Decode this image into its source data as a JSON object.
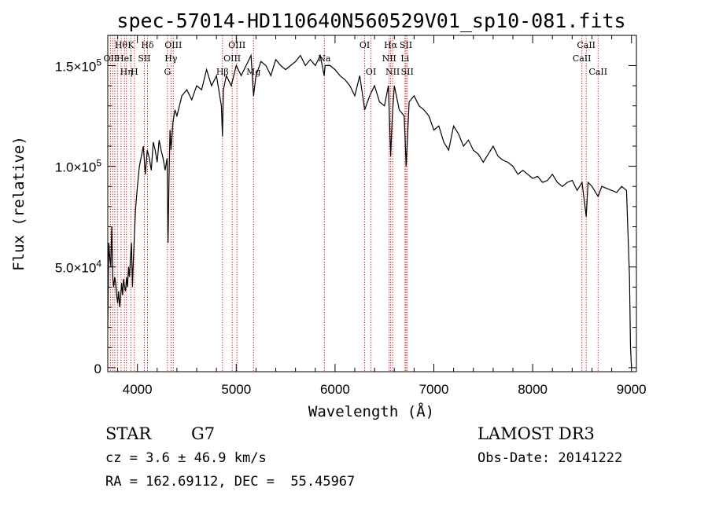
{
  "chart_data": {
    "type": "line",
    "title": "spec-57014-HD110640N560529V01_sp10-081.fits",
    "xlabel": "Wavelength (Å)",
    "ylabel": "Flux (relative)",
    "xlim": [
      3700,
      9050
    ],
    "ylim": [
      -2000,
      165000
    ],
    "xticks": [
      4000,
      5000,
      6000,
      7000,
      8000,
      9000
    ],
    "xtick_labels": [
      "4000",
      "5000",
      "6000",
      "7000",
      "8000",
      "9000"
    ],
    "yticks": [
      0,
      50000,
      100000,
      150000
    ],
    "ytick_labels": [
      {
        "mant": "0",
        "exp": ""
      },
      {
        "mant": "5.0×10",
        "exp": "4"
      },
      {
        "mant": "1.0×10",
        "exp": "5"
      },
      {
        "mant": "1.5×10",
        "exp": "5"
      }
    ],
    "series": [
      {
        "name": "flux",
        "color": "#000000",
        "x": [
          3700,
          3710,
          3720,
          3730,
          3740,
          3750,
          3760,
          3770,
          3780,
          3790,
          3800,
          3810,
          3820,
          3830,
          3840,
          3850,
          3860,
          3870,
          3880,
          3890,
          3900,
          3910,
          3920,
          3930,
          3940,
          3950,
          3960,
          3970,
          3980,
          3990,
          4000,
          4020,
          4040,
          4060,
          4080,
          4100,
          4120,
          4140,
          4160,
          4180,
          4200,
          4220,
          4240,
          4260,
          4280,
          4300,
          4310,
          4320,
          4330,
          4340,
          4360,
          4380,
          4400,
          4450,
          4500,
          4550,
          4600,
          4650,
          4700,
          4750,
          4800,
          4850,
          4861,
          4870,
          4900,
          4950,
          5000,
          5050,
          5100,
          5150,
          5175,
          5200,
          5250,
          5300,
          5350,
          5400,
          5450,
          5500,
          5550,
          5600,
          5650,
          5700,
          5750,
          5800,
          5850,
          5890,
          5900,
          5950,
          6000,
          6050,
          6100,
          6150,
          6200,
          6250,
          6300,
          6350,
          6400,
          6450,
          6500,
          6540,
          6563,
          6580,
          6600,
          6650,
          6700,
          6720,
          6750,
          6800,
          6850,
          6900,
          6950,
          7000,
          7050,
          7100,
          7150,
          7200,
          7250,
          7300,
          7350,
          7400,
          7450,
          7500,
          7550,
          7600,
          7650,
          7700,
          7750,
          7800,
          7850,
          7900,
          7950,
          8000,
          8050,
          8100,
          8150,
          8200,
          8250,
          8300,
          8350,
          8400,
          8450,
          8500,
          8542,
          8560,
          8600,
          8662,
          8700,
          8750,
          8800,
          8850,
          8900,
          8950,
          8980,
          8990,
          9000
        ],
        "y": [
          20000,
          62000,
          55000,
          50000,
          70000,
          45000,
          40000,
          45000,
          42000,
          36000,
          32000,
          38000,
          30000,
          35000,
          42000,
          36000,
          44000,
          40000,
          38000,
          45000,
          40000,
          50000,
          45000,
          55000,
          62000,
          40000,
          55000,
          66000,
          78000,
          84000,
          90000,
          100000,
          105000,
          110000,
          96000,
          108000,
          104000,
          98000,
          112000,
          108000,
          102000,
          113000,
          108000,
          104000,
          98000,
          104000,
          62000,
          95000,
          118000,
          108000,
          122000,
          128000,
          125000,
          135000,
          138000,
          133000,
          140000,
          138000,
          148000,
          140000,
          145000,
          130000,
          115000,
          138000,
          145000,
          140000,
          150000,
          145000,
          150000,
          155000,
          135000,
          145000,
          152000,
          150000,
          145000,
          153000,
          150000,
          148000,
          150000,
          152000,
          155000,
          150000,
          153000,
          150000,
          155000,
          145000,
          150000,
          150000,
          148000,
          145000,
          143000,
          140000,
          135000,
          145000,
          128000,
          135000,
          140000,
          132000,
          130000,
          140000,
          105000,
          125000,
          140000,
          128000,
          125000,
          100000,
          132000,
          135000,
          130000,
          128000,
          125000,
          118000,
          120000,
          112000,
          108000,
          120000,
          116000,
          110000,
          113000,
          108000,
          106000,
          102000,
          106000,
          110000,
          105000,
          103000,
          102000,
          100000,
          96000,
          98000,
          96000,
          94000,
          95000,
          92000,
          93000,
          96000,
          92000,
          90000,
          92000,
          93000,
          88000,
          92000,
          75000,
          92000,
          90000,
          85000,
          90000,
          89000,
          88000,
          87000,
          90000,
          88000,
          45000,
          10000,
          0
        ]
      }
    ],
    "lines": [
      {
        "wl": 3727,
        "label": "OII",
        "row": 1
      },
      {
        "wl": 3750,
        "label": "",
        "row": 0
      },
      {
        "wl": 3771,
        "label": "",
        "row": 0
      },
      {
        "wl": 3798,
        "label": "",
        "row": 0
      },
      {
        "wl": 3835,
        "label": "Hθ",
        "row": 0
      },
      {
        "wl": 3869,
        "label": "HeI",
        "row": 1
      },
      {
        "wl": 3889,
        "label": "Hη",
        "row": 2
      },
      {
        "wl": 3934,
        "label": "K",
        "row": 0
      },
      {
        "wl": 3970,
        "label": "H",
        "row": 2
      },
      {
        "wl": 4070,
        "label": "SII",
        "row": 1
      },
      {
        "wl": 4102,
        "label": "Hδ",
        "row": 0
      },
      {
        "wl": 4304,
        "label": "G",
        "row": 2
      },
      {
        "wl": 4340,
        "label": "Hγ",
        "row": 1
      },
      {
        "wl": 4363,
        "label": "OIII",
        "row": 0
      },
      {
        "wl": 4861,
        "label": "Hβ",
        "row": 2
      },
      {
        "wl": 4959,
        "label": "OIII",
        "row": 1
      },
      {
        "wl": 5007,
        "label": "OIII",
        "row": 0
      },
      {
        "wl": 5175,
        "label": "Mg",
        "row": 2
      },
      {
        "wl": 5892,
        "label": "Na",
        "row": 1
      },
      {
        "wl": 6300,
        "label": "OI",
        "row": 0
      },
      {
        "wl": 6364,
        "label": "OI",
        "row": 2
      },
      {
        "wl": 6548,
        "label": "NII",
        "row": 1
      },
      {
        "wl": 6563,
        "label": "Hα",
        "row": 0
      },
      {
        "wl": 6583,
        "label": "NII",
        "row": 2
      },
      {
        "wl": 6708,
        "label": "Li",
        "row": 1
      },
      {
        "wl": 6717,
        "label": "SII",
        "row": 0
      },
      {
        "wl": 6731,
        "label": "SII",
        "row": 2
      },
      {
        "wl": 8498,
        "label": "CaII",
        "row": 1
      },
      {
        "wl": 8542,
        "label": "CaII",
        "row": 0
      },
      {
        "wl": 8662,
        "label": "CaII",
        "row": 2
      }
    ]
  },
  "footer": {
    "object_type": "STAR",
    "subclass": "G7",
    "survey": "LAMOST DR3",
    "redshift_line": "cz = 3.6 ± 46.9 km/s",
    "obs_date_line": "Obs-Date: 20141222",
    "coords_line": "RA = 162.69112, DEC =  55.45967"
  }
}
